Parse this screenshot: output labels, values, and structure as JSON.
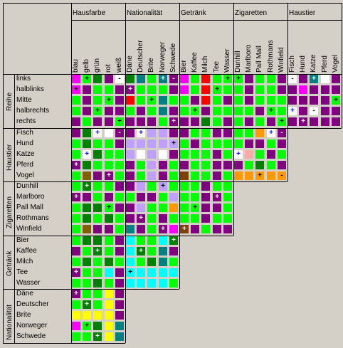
{
  "groups": {
    "col": [
      "Hausfarbe",
      "Nationalität",
      "Getränk",
      "Zigaretten",
      "Haustier"
    ],
    "row": [
      "Reihe",
      "Haustier",
      "Zigaretten",
      "Getränk",
      "Nationalität"
    ]
  },
  "columns": [
    "blau",
    "gelb",
    "grün",
    "rot",
    "weiß",
    "Däne",
    "Deutscher",
    "Brite",
    "Norweger",
    "Schwede",
    "Bier",
    "Kaffee",
    "Milch",
    "Tee",
    "Wasser",
    "Dunhill",
    "Marlboro",
    "Pall Mall",
    "Rothmans",
    "Winfield",
    "Fisch",
    "Hund",
    "Katze",
    "Pferd",
    "Vogel"
  ],
  "rows": [
    "links",
    "halblinks",
    "Mitte",
    "halbrechts",
    "rechts",
    "Fisch",
    "Hund",
    "Katze",
    "Pferd",
    "Vogel",
    "Dunhill",
    "Marlboro",
    "Pall Mall",
    "Rothmans",
    "Winfield",
    "Bier",
    "Kaffee",
    "Milch",
    "Tee",
    "Wasser",
    "Däne",
    "Deutscher",
    "Brite",
    "Norweger",
    "Schwede"
  ],
  "palette": {
    "P": "#800080",
    "G": "#00ff00",
    "M": "#ff00ff",
    "D": "#008000",
    "T": "#008080",
    "R": "#ff0000",
    "W": "#ffffff",
    "L": "#c0a0ff",
    "O": "#ff9900",
    "K": "#ffaaaa",
    "C": "#00ffff",
    "Y": "#ffff00",
    "B": "#008080",
    "N": "#806000",
    "S": "#804000"
  },
  "grid": [
    [
      "M",
      "G",
      "D",
      "P",
      "W",
      "D",
      "T",
      "G",
      "T",
      "P",
      "M",
      "G",
      "R",
      "G",
      "G",
      "G",
      "P",
      "G",
      "G",
      "P",
      "W",
      "P",
      "T",
      "W",
      "P"
    ],
    [
      "M",
      "P",
      "G",
      "G",
      "P",
      "P",
      "G",
      "G",
      "G",
      "P",
      "M",
      "G",
      "R",
      "G",
      "G",
      "G",
      "P",
      "G",
      "G",
      "P",
      "P",
      "M",
      "P",
      "P",
      "P"
    ],
    [
      "G",
      "P",
      "G",
      "G",
      "P",
      "R",
      "G",
      "G",
      "T",
      "G",
      "G",
      "P",
      "R",
      "G",
      "P",
      "G",
      "P",
      "G",
      "G",
      "G",
      "P",
      "P",
      "P",
      "P",
      "G"
    ],
    [
      "G",
      "P",
      "G",
      "P",
      "P",
      "G",
      "P",
      "G",
      "T",
      "P",
      "G",
      "G",
      "P",
      "G",
      "G",
      "G",
      "G",
      "P",
      "G",
      "G",
      "W",
      "P",
      "W",
      "P",
      "P"
    ],
    [
      "P",
      "G",
      "P",
      "P",
      "G",
      "P",
      "P",
      "P",
      "G",
      "P",
      "P",
      "P",
      "D",
      "G",
      "P",
      "G",
      "P",
      "G",
      "P",
      "G",
      "P",
      "P",
      "P",
      "P",
      "P"
    ],
    [
      "P",
      "D",
      "W",
      "W",
      "P",
      "P",
      "W",
      "L",
      "L",
      "P",
      "P",
      "G",
      "G",
      "P",
      "P",
      "G",
      "G",
      "O",
      "W",
      "P",
      "",
      "",
      "",
      "",
      ""
    ],
    [
      "G",
      "D",
      "G",
      "G",
      "P",
      "L",
      "L",
      "L",
      "L",
      "L",
      "G",
      "P",
      "G",
      "G",
      "G",
      "G",
      "P",
      "P",
      "G",
      "P",
      "",
      "",
      "",
      "",
      ""
    ],
    [
      "G",
      "W",
      "D",
      "G",
      "G",
      "L",
      "W",
      "L",
      "W",
      "P",
      "G",
      "G",
      "G",
      "P",
      "G",
      "W",
      "K",
      "G",
      "P",
      "G",
      "",
      "",
      "",
      "",
      ""
    ],
    [
      "P",
      "D",
      "G",
      "G",
      "G",
      "P",
      "G",
      "L",
      "P",
      "G",
      "P",
      "G",
      "G",
      "P",
      "P",
      "P",
      "G",
      "D",
      "G",
      "P",
      "",
      "",
      "",
      "",
      ""
    ],
    [
      "G",
      "N",
      "P",
      "P",
      "G",
      "P",
      "G",
      "L",
      "P",
      "G",
      "S",
      "G",
      "G",
      "P",
      "G",
      "O",
      "O",
      "O",
      "O",
      "O",
      "",
      "",
      "",
      "",
      ""
    ],
    [
      "G",
      "D",
      "G",
      "G",
      "P",
      "P",
      "L",
      "G",
      "L",
      "G",
      "G",
      "G",
      "P",
      "G",
      "G",
      "",
      "",
      "",
      "",
      "",
      "",
      "",
      "",
      "",
      ""
    ],
    [
      "P",
      "P",
      "G",
      "P",
      "G",
      "G",
      "P",
      "P",
      "G",
      "L",
      "G",
      "G",
      "P",
      "P",
      "G",
      "",
      "",
      "",
      "",
      "",
      "",
      "",
      "",
      "",
      ""
    ],
    [
      "G",
      "D",
      "D",
      "G",
      "P",
      "P",
      "L",
      "G",
      "G",
      "O",
      "G",
      "G",
      "P",
      "P",
      "G",
      "",
      "",
      "",
      "",
      "",
      "",
      "",
      "",
      "",
      ""
    ],
    [
      "G",
      "D",
      "G",
      "D",
      "G",
      "P",
      "P",
      "G",
      "P",
      "G",
      "G",
      "G",
      "P",
      "G",
      "G",
      "",
      "",
      "",
      "",
      "",
      "",
      "",
      "",
      "",
      ""
    ],
    [
      "G",
      "N",
      "P",
      "P",
      "G",
      "T",
      "P",
      "G",
      "P",
      "M",
      "S",
      "P",
      "G",
      "P",
      "P",
      "",
      "",
      "",
      "",
      "",
      "",
      "",
      "",
      "",
      ""
    ],
    [
      "G",
      "D",
      "D",
      "G",
      "P",
      "C",
      "G",
      "G",
      "C",
      "D",
      "",
      "",
      "",
      "",
      "",
      "",
      "",
      "",
      "",
      "",
      "",
      "",
      "",
      "",
      ""
    ],
    [
      "P",
      "G",
      "D",
      "G",
      "P",
      "C",
      "D",
      "G",
      "T",
      "P",
      "",
      "",
      "",
      "",
      "",
      "",
      "",
      "",
      "",
      "",
      "",
      "",
      "",
      "",
      ""
    ],
    [
      "G",
      "D",
      "G",
      "D",
      "G",
      "C",
      "G",
      "D",
      "T",
      "G",
      "",
      "",
      "",
      "",
      "",
      "",
      "",
      "",
      "",
      "",
      "",
      "",
      "",
      "",
      ""
    ],
    [
      "P",
      "G",
      "G",
      "C",
      "P",
      "C",
      "C",
      "C",
      "C",
      "C",
      "",
      "",
      "",
      "",
      "",
      "",
      "",
      "",
      "",
      "",
      "",
      "",
      "",
      "",
      ""
    ],
    [
      "G",
      "G",
      "D",
      "G",
      "P",
      "C",
      "C",
      "C",
      "C",
      "G",
      "",
      "",
      "",
      "",
      "",
      "",
      "",
      "",
      "",
      "",
      "",
      "",
      "",
      "",
      ""
    ],
    [
      "P",
      "G",
      "G",
      "Y",
      "P",
      "",
      "",
      "",
      "",
      "",
      "",
      "",
      "",
      "",
      "",
      "",
      "",
      "",
      "",
      "",
      "",
      "",
      "",
      "",
      ""
    ],
    [
      "G",
      "D",
      "G",
      "Y",
      "P",
      "",
      "",
      "",
      "",
      "",
      "",
      "",
      "",
      "",
      "",
      "",
      "",
      "",
      "",
      "",
      "",
      "",
      "",
      "",
      ""
    ],
    [
      "Y",
      "Y",
      "Y",
      "Y",
      "P",
      "",
      "",
      "",
      "",
      "",
      "",
      "",
      "",
      "",
      "",
      "",
      "",
      "",
      "",
      "",
      "",
      "",
      "",
      "",
      ""
    ],
    [
      "M",
      "G",
      "D",
      "Y",
      "T",
      "",
      "",
      "",
      "",
      "",
      "",
      "",
      "",
      "",
      "",
      "",
      "",
      "",
      "",
      "",
      "",
      "",
      "",
      "",
      ""
    ],
    [
      "G",
      "G",
      "D",
      "Y",
      "T",
      "",
      "",
      "",
      "",
      "",
      "",
      "",
      "",
      "",
      "",
      "",
      "",
      "",
      "",
      "",
      "",
      "",
      "",
      "",
      ""
    ]
  ],
  "marks": [
    [
      "",
      "+",
      "",
      "",
      "-",
      "",
      "",
      "",
      "+",
      "-",
      "",
      "",
      "",
      "",
      "+",
      "+",
      "",
      "",
      "",
      "",
      "-",
      "",
      "+",
      "",
      ""
    ],
    [
      "+",
      "",
      "",
      "",
      "",
      "+",
      "",
      "",
      "",
      "",
      "",
      "",
      "",
      "+",
      "",
      "",
      "",
      "",
      "",
      "",
      "",
      "",
      "",
      "",
      ""
    ],
    [
      "",
      "",
      "",
      "+",
      "",
      "",
      "",
      "+",
      "",
      "",
      "",
      "",
      "",
      "",
      "",
      "",
      "",
      "",
      "",
      "",
      "",
      "",
      "",
      "",
      "+"
    ],
    [
      "",
      "",
      "+",
      "",
      "",
      "",
      "",
      "",
      "",
      "",
      "",
      "+",
      "",
      "",
      "",
      "",
      "",
      "",
      "+",
      "",
      "+",
      "",
      "-",
      "",
      ""
    ],
    [
      "",
      "",
      "",
      "",
      "+",
      "",
      "",
      "",
      "",
      "+",
      "",
      "",
      "",
      "",
      "",
      "",
      "",
      "",
      "",
      "+",
      "",
      "+",
      "",
      "",
      ""
    ],
    [
      "",
      "",
      "+",
      "",
      "-",
      "",
      "+",
      "",
      "",
      "",
      "",
      "",
      "",
      "",
      "",
      "",
      "",
      "",
      "+",
      "-",
      "",
      "",
      "",
      "",
      ""
    ],
    [
      "",
      "",
      "",
      "",
      "",
      "",
      "",
      "",
      "",
      "+",
      "",
      "",
      "",
      "",
      "",
      "",
      "",
      "",
      "",
      "",
      "",
      "",
      "",
      "",
      ""
    ],
    [
      "",
      "+",
      "",
      "",
      "",
      "",
      "",
      "",
      "",
      "",
      "",
      "",
      "",
      "",
      "",
      "+",
      "",
      "",
      "",
      "",
      "",
      "",
      "",
      "",
      ""
    ],
    [
      "+",
      "",
      "",
      "",
      "",
      "",
      "",
      "",
      "",
      "",
      "",
      "",
      "",
      "",
      "",
      "",
      "",
      "",
      "",
      "",
      "",
      "",
      "",
      "",
      ""
    ],
    [
      "",
      "",
      "",
      "+",
      "",
      "",
      "",
      "",
      "",
      "",
      "",
      "",
      "",
      "",
      "",
      "",
      "",
      "+",
      "",
      "-",
      "",
      "",
      "",
      "",
      ""
    ],
    [
      "",
      "+",
      "",
      "",
      "",
      "",
      "",
      "",
      "+",
      "",
      "",
      "",
      "",
      "",
      "",
      "",
      "",
      "",
      "",
      "",
      "",
      "",
      "",
      "",
      ""
    ],
    [
      "+",
      "",
      "",
      "",
      "",
      "",
      "",
      "",
      "",
      "",
      "",
      "",
      "",
      "+",
      "",
      "",
      "",
      "",
      "",
      "",
      "",
      "",
      "",
      "",
      ""
    ],
    [
      "",
      "",
      "",
      "+",
      "",
      "",
      "",
      "",
      "",
      "",
      "",
      "+",
      "",
      "",
      "",
      "",
      "",
      "",
      "",
      "",
      "",
      "",
      "",
      "",
      ""
    ],
    [
      "",
      "",
      "",
      "",
      "",
      "",
      "+",
      "",
      "",
      "",
      "",
      "",
      "",
      "",
      "",
      "",
      "",
      "",
      "",
      "",
      "",
      "",
      "",
      "",
      ""
    ],
    [
      "",
      "",
      "",
      "",
      "",
      "",
      "",
      "",
      "+",
      "",
      "+",
      "",
      "",
      "",
      "",
      "",
      "",
      "",
      "",
      "",
      "",
      "",
      "",
      "",
      ""
    ],
    [
      "",
      "",
      "",
      "",
      "",
      "",
      "",
      "",
      "",
      "+",
      "",
      "",
      "",
      "",
      "",
      "",
      "",
      "",
      "",
      "",
      "",
      "",
      "",
      "",
      ""
    ],
    [
      "",
      "",
      "+",
      "",
      "",
      "",
      "+",
      "",
      "",
      "",
      "",
      "",
      "",
      "",
      "",
      "",
      "",
      "",
      "",
      "",
      "",
      "",
      "",
      "",
      ""
    ],
    [
      "",
      "",
      "",
      "",
      "",
      "",
      "",
      "",
      "",
      "",
      "",
      "",
      "",
      "",
      "",
      "",
      "",
      "",
      "",
      "",
      "",
      "",
      "",
      "",
      ""
    ],
    [
      "+",
      "",
      "",
      "",
      "",
      "+",
      "",
      "",
      "",
      "",
      "",
      "",
      "",
      "",
      "",
      "",
      "",
      "",
      "",
      "",
      "",
      "",
      "",
      "",
      ""
    ],
    [
      "",
      "",
      "",
      "",
      "",
      "",
      "",
      "",
      "",
      "",
      "",
      "",
      "",
      "",
      "",
      "",
      "",
      "",
      "",
      "",
      "",
      "",
      "",
      "",
      ""
    ],
    [
      "+",
      "",
      "",
      "",
      "",
      "",
      "",
      "",
      "",
      "",
      "",
      "",
      "",
      "",
      "",
      "",
      "",
      "",
      "",
      "",
      "",
      "",
      "",
      "",
      ""
    ],
    [
      "",
      "+",
      "",
      "",
      "",
      "",
      "",
      "",
      "",
      "",
      "",
      "",
      "",
      "",
      "",
      "",
      "",
      "",
      "",
      "",
      "",
      "",
      "",
      "",
      ""
    ],
    [
      "",
      "",
      "",
      "",
      "",
      "",
      "",
      "",
      "",
      "",
      "",
      "",
      "",
      "",
      "",
      "",
      "",
      "",
      "",
      "",
      "",
      "",
      "",
      "",
      ""
    ],
    [
      "",
      "+",
      "",
      "",
      "",
      "",
      "",
      "",
      "",
      "",
      "",
      "",
      "",
      "",
      "",
      "",
      "",
      "",
      "",
      "",
      "",
      "",
      "",
      "",
      ""
    ],
    [
      "",
      "",
      "+",
      "",
      "",
      "",
      "",
      "",
      "",
      "",
      "",
      "",
      "",
      "",
      "",
      "",
      "",
      "",
      "",
      "",
      "",
      "",
      "",
      "",
      ""
    ]
  ]
}
